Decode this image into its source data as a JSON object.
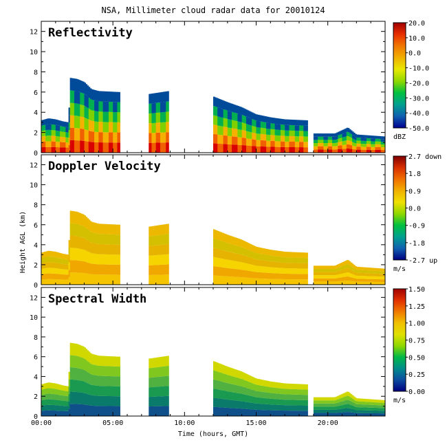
{
  "chart_data": {
    "type": "heatmap",
    "title": "NSA, Millimeter cloud radar data for 20010124",
    "xlabel": "Time (hours, GMT)",
    "ylabel": "Height AGL (km)",
    "xlim": [
      0,
      24
    ],
    "x_ticks": [
      "00:00",
      "05:00",
      "10:00",
      "15:00",
      "20:00"
    ],
    "x_tick_values": [
      0,
      5,
      10,
      15,
      20
    ],
    "ylim": [
      0,
      13
    ],
    "y_ticks": [
      "0",
      "2",
      "4",
      "6",
      "8",
      "10",
      "12"
    ],
    "y_tick_values": [
      0,
      2,
      4,
      6,
      8,
      10,
      12
    ],
    "data_gaps_hours": [
      [
        5.45,
        7.5
      ],
      [
        8.9,
        11.95
      ],
      [
        18.6,
        19.0
      ]
    ],
    "cloud_top_km": [
      {
        "t": 0.0,
        "h": 3.2
      },
      {
        "t": 0.5,
        "h": 3.4
      },
      {
        "t": 1.0,
        "h": 3.3
      },
      {
        "t": 1.5,
        "h": 3.1
      },
      {
        "t": 1.9,
        "h": 3.0
      },
      {
        "t": 2.05,
        "h": 7.4
      },
      {
        "t": 2.5,
        "h": 7.3
      },
      {
        "t": 3.0,
        "h": 7.0
      },
      {
        "t": 3.5,
        "h": 6.3
      },
      {
        "t": 4.0,
        "h": 6.1
      },
      {
        "t": 5.45,
        "h": 6.0
      },
      {
        "t": 7.5,
        "h": 5.8
      },
      {
        "t": 8.9,
        "h": 6.1
      },
      {
        "t": 11.95,
        "h": 5.6
      },
      {
        "t": 13.0,
        "h": 5.0
      },
      {
        "t": 14.0,
        "h": 4.5
      },
      {
        "t": 15.0,
        "h": 3.8
      },
      {
        "t": 16.0,
        "h": 3.5
      },
      {
        "t": 17.0,
        "h": 3.3
      },
      {
        "t": 18.6,
        "h": 3.2
      },
      {
        "t": 19.0,
        "h": 1.9
      },
      {
        "t": 20.5,
        "h": 1.9
      },
      {
        "t": 21.4,
        "h": 2.5
      },
      {
        "t": 22.0,
        "h": 1.8
      },
      {
        "t": 24.0,
        "h": 1.6
      }
    ],
    "panels": [
      {
        "name": "Reflectivity",
        "units": "dBZ",
        "colorbar_ticks": [
          "20.0",
          "10.0",
          "0.0",
          "-10.0",
          "-20.0",
          "-30.0",
          "-40.0",
          "-50.0"
        ],
        "colorbar_range": [
          -50,
          20
        ],
        "colors": [
          "#d80000",
          "#f06000",
          "#f6b000",
          "#80d000",
          "#00b050",
          "#004a9a"
        ]
      },
      {
        "name": "Doppler Velocity",
        "units": "m/s",
        "colorbar_ticks": [
          "2.7 down",
          "1.8",
          "0.9",
          "0.0",
          "-0.9",
          "-1.8",
          "-2.7 up"
        ],
        "colorbar_range": [
          -2.7,
          2.7
        ],
        "colors": [
          "#f4c400",
          "#f0a800",
          "#f6d400",
          "#e6b400",
          "#d4c000",
          "#ecb800"
        ]
      },
      {
        "name": "Spectral Width",
        "units": "m/s",
        "colorbar_ticks": [
          "1.50",
          "1.25",
          "1.00",
          "0.75",
          "0.50",
          "0.25",
          "0.00"
        ],
        "colorbar_range": [
          0,
          1.5
        ],
        "colors": [
          "#10508a",
          "#0a7a6a",
          "#1a9a50",
          "#50b040",
          "#80c820",
          "#d0d800"
        ]
      }
    ]
  }
}
